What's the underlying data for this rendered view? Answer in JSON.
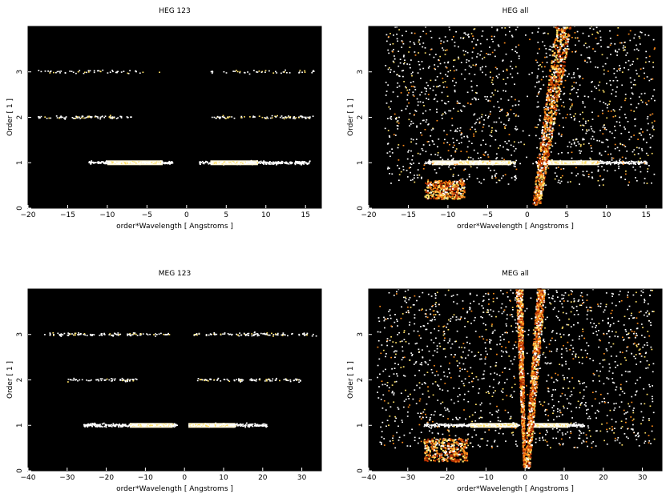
{
  "chart_data": [
    {
      "type": "heatmap",
      "title": "HEG 123",
      "xlabel": "order*Wavelength [ Angstroms ]",
      "ylabel": "Order [ 1 ]",
      "xlim": [
        -20,
        17
      ],
      "ylim": [
        0,
        4
      ],
      "xticks": [
        -20,
        -15,
        -10,
        -5,
        0,
        5,
        10,
        15
      ],
      "yticks": [
        0,
        1,
        2,
        3
      ],
      "x_tick_labels": [
        "−20",
        "−15",
        "−10",
        "−5",
        "0",
        "5",
        "10",
        "15"
      ],
      "y_tick_labels": [
        "0",
        "1",
        "2",
        "3"
      ],
      "grid": false,
      "background": "#000000",
      "colormap": [
        "#000000",
        "#5a0a00",
        "#b83200",
        "#ff8c1a",
        "#ffe066",
        "#ffffff"
      ],
      "bands": [
        {
          "order": 1,
          "x_ranges": [
            [
              -12.5,
              -1.8
            ],
            [
              1.5,
              15.5
            ]
          ],
          "peak_ranges": [
            [
              -10,
              -3
            ],
            [
              3,
              9
            ]
          ],
          "intensity": "high"
        },
        {
          "order": 2,
          "x_ranges": [
            [
              -19,
              -7
            ],
            [
              3,
              16
            ]
          ],
          "intensity": "low"
        },
        {
          "order": 3,
          "x_ranges": [
            [
              -19,
              -3
            ],
            [
              3,
              16
            ]
          ],
          "intensity": "very low"
        }
      ]
    },
    {
      "type": "heatmap",
      "title": "HEG all",
      "xlabel": "order*Wavelength [ Angstroms ]",
      "ylabel": "Order [ 1 ]",
      "xlim": [
        -20,
        17
      ],
      "ylim": [
        0,
        4
      ],
      "xticks": [
        -20,
        -15,
        -10,
        -5,
        0,
        5,
        10,
        15
      ],
      "yticks": [
        0,
        1,
        2,
        3
      ],
      "x_tick_labels": [
        "−20",
        "−15",
        "−10",
        "−5",
        "0",
        "5",
        "10",
        "15"
      ],
      "y_tick_labels": [
        "0",
        "1",
        "2",
        "3"
      ],
      "grid": false,
      "background": "#000000",
      "colormap": [
        "#000000",
        "#5a0a00",
        "#b83200",
        "#ff8c1a",
        "#ffe066",
        "#ffffff"
      ],
      "bands": [
        {
          "order": 1,
          "x_ranges": [
            [
              -13,
              -1.5
            ],
            [
              1,
              15
            ]
          ],
          "peak_ranges": [
            [
              -12,
              -2
            ],
            [
              2,
              9
            ]
          ],
          "intensity": "high"
        }
      ],
      "features": [
        {
          "kind": "wedge",
          "x_at_order_0": [
            0.5,
            1.5
          ],
          "x_at_order_4": [
            3.5,
            5.5
          ]
        },
        {
          "kind": "diffuse",
          "x_range": [
            -18,
            16
          ],
          "order_range": [
            0.5,
            4
          ]
        },
        {
          "kind": "blob",
          "x_range": [
            -13,
            -8
          ],
          "order_range": [
            0.2,
            0.6
          ]
        }
      ]
    },
    {
      "type": "heatmap",
      "title": "MEG 123",
      "xlabel": "order*Wavelength [ Angstroms ]",
      "ylabel": "Order [ 1 ]",
      "xlim": [
        -40,
        35
      ],
      "ylim": [
        0,
        4
      ],
      "xticks": [
        -40,
        -30,
        -20,
        -10,
        0,
        10,
        20,
        30
      ],
      "yticks": [
        0,
        1,
        2,
        3
      ],
      "x_tick_labels": [
        "−40",
        "−30",
        "−20",
        "−10",
        "0",
        "10",
        "20",
        "30"
      ],
      "y_tick_labels": [
        "0",
        "1",
        "2",
        "3"
      ],
      "grid": false,
      "background": "#000000",
      "colormap": [
        "#000000",
        "#5a0a00",
        "#b83200",
        "#ff8c1a",
        "#ffe066",
        "#ffffff"
      ],
      "bands": [
        {
          "order": 1,
          "x_ranges": [
            [
              -26,
              -2
            ],
            [
              2,
              21
            ]
          ],
          "peak_ranges": [
            [
              -14,
              -3
            ],
            [
              1,
              13
            ]
          ],
          "intensity": "high"
        },
        {
          "order": 2,
          "x_ranges": [
            [
              -30,
              -12
            ],
            [
              2,
              30
            ]
          ],
          "intensity": "low"
        },
        {
          "order": 3,
          "x_ranges": [
            [
              -36,
              -4
            ],
            [
              2,
              34
            ]
          ],
          "intensity": "low"
        }
      ]
    },
    {
      "type": "heatmap",
      "title": "MEG all",
      "xlabel": "order*Wavelength [ Angstroms ]",
      "ylabel": "Order [ 1 ]",
      "xlim": [
        -40,
        35
      ],
      "ylim": [
        0,
        4
      ],
      "xticks": [
        -40,
        -30,
        -20,
        -10,
        0,
        10,
        20,
        30
      ],
      "yticks": [
        0,
        1,
        2,
        3
      ],
      "x_tick_labels": [
        "−40",
        "−30",
        "−20",
        "−10",
        "0",
        "10",
        "20",
        "30"
      ],
      "y_tick_labels": [
        "0",
        "1",
        "2",
        "3"
      ],
      "grid": false,
      "background": "#000000",
      "colormap": [
        "#000000",
        "#5a0a00",
        "#b83200",
        "#ff8c1a",
        "#ffe066",
        "#ffffff"
      ],
      "bands": [
        {
          "order": 1,
          "x_ranges": [
            [
              -26,
              -1.5
            ],
            [
              1,
              15
            ]
          ],
          "peak_ranges": [
            [
              -14,
              -2
            ],
            [
              2,
              11
            ]
          ],
          "intensity": "high"
        }
      ],
      "features": [
        {
          "kind": "wedge",
          "x_at_order_0": [
            -0.5,
            1
          ],
          "x_at_order_4": [
            3,
            5
          ]
        },
        {
          "kind": "wedge",
          "x_at_order_0": [
            -0.5,
            -0.2
          ],
          "x_at_order_4": [
            -2.5,
            -0.8
          ]
        },
        {
          "kind": "diffuse",
          "x_range": [
            -38,
            33
          ],
          "order_range": [
            0.5,
            4
          ]
        },
        {
          "kind": "blob",
          "x_range": [
            -26,
            -15
          ],
          "order_range": [
            0.2,
            0.7
          ]
        }
      ]
    }
  ]
}
